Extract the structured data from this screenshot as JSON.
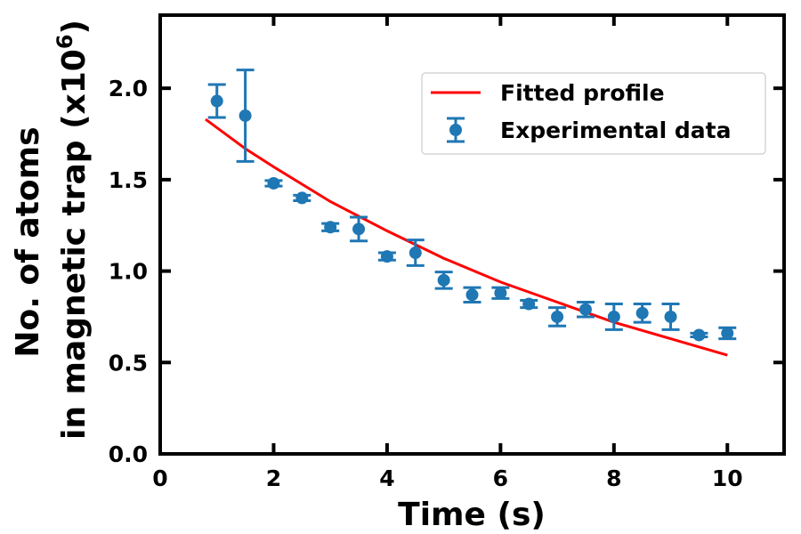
{
  "chart_data": {
    "type": "scatter",
    "xlabel": "Time (s)",
    "ylabel_line1": "No. of atoms",
    "ylabel_line2_prefix": "in magnetic trap (x10",
    "ylabel_exponent": "6",
    "ylabel_suffix": ")",
    "xlim": [
      0,
      11
    ],
    "ylim": [
      0,
      2.4
    ],
    "xticks": [
      0,
      2,
      4,
      6,
      8,
      10
    ],
    "xtick_labels": [
      "0",
      "2",
      "4",
      "6",
      "8",
      "10"
    ],
    "yticks": [
      0,
      0.5,
      1.0,
      1.5,
      2.0
    ],
    "ytick_labels": [
      "0.0",
      "0.5",
      "1.0",
      "1.5",
      "2.0"
    ],
    "grid": false,
    "legend_position": "top-right",
    "series": [
      {
        "name": "Experimental data",
        "kind": "errorbar",
        "color": "#1f77b4",
        "x": [
          1.0,
          1.5,
          2.0,
          2.5,
          3.0,
          3.5,
          4.0,
          4.5,
          5.0,
          5.5,
          6.0,
          6.5,
          7.0,
          7.5,
          8.0,
          8.5,
          9.0,
          9.5,
          10.0
        ],
        "y": [
          1.93,
          1.85,
          1.48,
          1.4,
          1.24,
          1.23,
          1.08,
          1.1,
          0.95,
          0.87,
          0.88,
          0.82,
          0.75,
          0.79,
          0.75,
          0.77,
          0.75,
          0.65,
          0.66
        ],
        "err": [
          0.09,
          0.25,
          0.015,
          0.015,
          0.02,
          0.065,
          0.02,
          0.07,
          0.045,
          0.04,
          0.03,
          0.02,
          0.05,
          0.04,
          0.07,
          0.05,
          0.07,
          0.01,
          0.03
        ]
      },
      {
        "name": "Fitted profile",
        "kind": "line",
        "color": "#ff0000",
        "x": [
          0.8,
          1.5,
          2.0,
          3.0,
          4.0,
          5.0,
          6.0,
          7.0,
          8.0,
          9.0,
          10.0
        ],
        "y": [
          1.83,
          1.67,
          1.57,
          1.38,
          1.22,
          1.07,
          0.94,
          0.83,
          0.72,
          0.63,
          0.54
        ]
      }
    ]
  }
}
